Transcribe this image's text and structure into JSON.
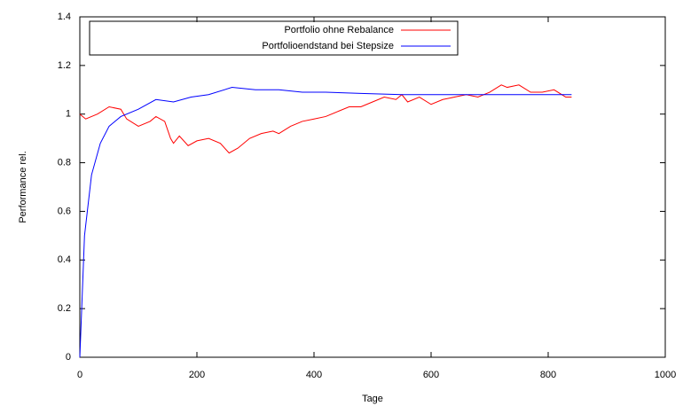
{
  "chart_data": {
    "type": "line",
    "xlabel": "Tage",
    "ylabel": "Performance rel.",
    "xlim": [
      0,
      1000
    ],
    "xticks": [
      0,
      200,
      400,
      600,
      800,
      1000
    ],
    "ylim": [
      0,
      1.4
    ],
    "yticks": [
      0,
      0.2,
      0.4,
      0.6,
      0.8,
      1,
      1.2,
      1.4
    ],
    "legend": "top-left",
    "series": [
      {
        "name": "Portfolio ohne Rebalance",
        "color": "#ff0000",
        "x": [
          0,
          10,
          30,
          50,
          70,
          80,
          100,
          120,
          130,
          145,
          155,
          160,
          170,
          185,
          200,
          220,
          240,
          255,
          270,
          290,
          310,
          330,
          340,
          360,
          380,
          400,
          420,
          440,
          460,
          480,
          500,
          520,
          540,
          550,
          560,
          580,
          600,
          620,
          640,
          660,
          680,
          700,
          720,
          730,
          750,
          770,
          790,
          810,
          830,
          840
        ],
        "values": [
          1.0,
          0.98,
          1.0,
          1.03,
          1.02,
          0.98,
          0.95,
          0.97,
          0.99,
          0.97,
          0.9,
          0.88,
          0.91,
          0.87,
          0.89,
          0.9,
          0.88,
          0.84,
          0.86,
          0.9,
          0.92,
          0.93,
          0.92,
          0.95,
          0.97,
          0.98,
          0.99,
          1.01,
          1.03,
          1.03,
          1.05,
          1.07,
          1.06,
          1.08,
          1.05,
          1.07,
          1.04,
          1.06,
          1.07,
          1.08,
          1.07,
          1.09,
          1.12,
          1.11,
          1.12,
          1.09,
          1.09,
          1.1,
          1.07,
          1.07
        ]
      },
      {
        "name": "Portfolioendstand bei Stepsize",
        "color": "#0000ff",
        "x": [
          0,
          8,
          20,
          35,
          50,
          70,
          100,
          130,
          160,
          190,
          220,
          260,
          300,
          340,
          380,
          420,
          480,
          550,
          650,
          750,
          840
        ],
        "values": [
          0,
          0.5,
          0.75,
          0.88,
          0.95,
          0.99,
          1.02,
          1.06,
          1.05,
          1.07,
          1.08,
          1.11,
          1.1,
          1.1,
          1.09,
          1.09,
          1.085,
          1.08,
          1.08,
          1.08,
          1.08
        ]
      }
    ]
  }
}
